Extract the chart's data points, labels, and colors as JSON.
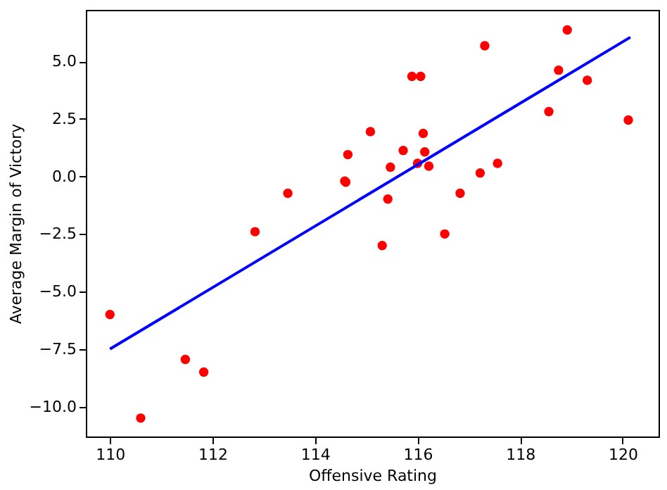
{
  "chart_data": {
    "type": "scatter",
    "xlabel": "Offensive Rating",
    "ylabel": "Average Margin of Victory",
    "xlim": [
      109.53,
      120.7
    ],
    "ylim": [
      -11.3,
      7.24
    ],
    "xticks": [
      110,
      112,
      114,
      116,
      118,
      120
    ],
    "yticks": [
      {
        "value": -10,
        "label": "−10.0"
      },
      {
        "value": -7.5,
        "label": "−7.5"
      },
      {
        "value": -5,
        "label": "−5.0"
      },
      {
        "value": -2.5,
        "label": "−2.5"
      },
      {
        "value": 0,
        "label": "0.0"
      },
      {
        "value": 2.5,
        "label": "2.5"
      },
      {
        "value": 5,
        "label": "5.0"
      }
    ],
    "grid": false,
    "series": [
      {
        "color": "#ff0000",
        "marker": "circle",
        "x": [
          110.0,
          110.6,
          111.47,
          111.83,
          112.83,
          113.47,
          114.58,
          114.6,
          114.64,
          115.08,
          115.31,
          115.42,
          115.47,
          115.72,
          115.89,
          116.06,
          116.0,
          116.11,
          116.14,
          116.22,
          116.53,
          116.83,
          117.22,
          117.31,
          117.56,
          118.56,
          118.75,
          118.92,
          119.31,
          120.11
        ],
        "values": [
          -6.0,
          -10.5,
          -7.95,
          -8.5,
          -2.4,
          -0.73,
          -0.2,
          -0.25,
          0.95,
          1.95,
          -3.0,
          -0.98,
          0.4,
          1.13,
          4.35,
          4.35,
          0.57,
          1.87,
          1.07,
          0.45,
          -2.5,
          -0.73,
          0.15,
          5.68,
          0.57,
          2.82,
          4.62,
          6.37,
          4.18,
          2.45
        ]
      },
      {
        "type": "line",
        "color": "#0000ff",
        "line_style": "solid",
        "x": [
          110.0,
          120.15
        ],
        "values": [
          -7.5,
          6.05
        ]
      }
    ]
  }
}
